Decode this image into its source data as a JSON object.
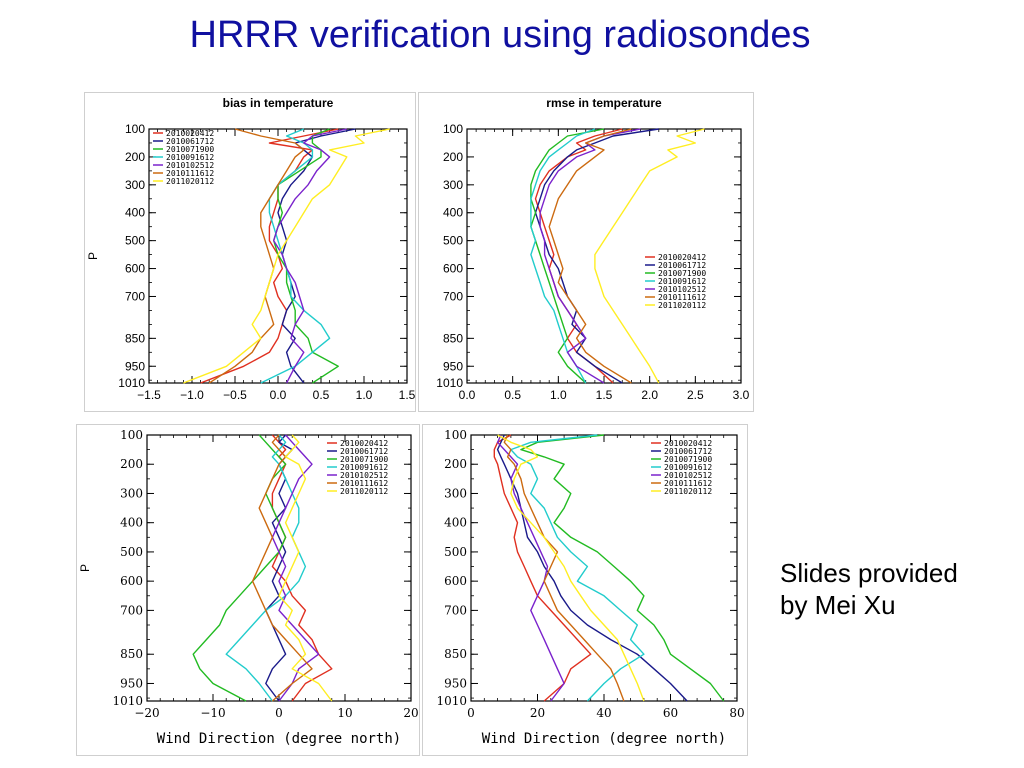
{
  "slide": {
    "title": "HRRR verification using radiosondes",
    "note_line1": "Slides provided",
    "note_line2": "by Mei Xu"
  },
  "colors": {
    "title": "#1010a0",
    "series": [
      "#e03020",
      "#1a1a8a",
      "#22bb22",
      "#22cccc",
      "#7a22cc",
      "#cc6a10",
      "#ffee22"
    ]
  },
  "chart_data": [
    {
      "type": "line",
      "title": "bias in temperature",
      "ylabel": "P",
      "xlabel": "",
      "xlim": [
        -1.5,
        1.5
      ],
      "xticks": [
        -1.5,
        -1.0,
        -0.5,
        0.0,
        0.5,
        1.0,
        1.5
      ],
      "xtick_labels": [
        "−1.5",
        "−1.0",
        "−0.5",
        "0.0",
        "0.5",
        "1.0",
        "1.5"
      ],
      "yticks": [
        100,
        200,
        300,
        400,
        500,
        600,
        700,
        850,
        950,
        1010
      ],
      "y_inverted": true,
      "grid": false,
      "legend_position": "top-left",
      "pressure": [
        100,
        125,
        150,
        175,
        200,
        250,
        300,
        350,
        400,
        450,
        500,
        550,
        600,
        650,
        700,
        750,
        800,
        850,
        900,
        950,
        1010
      ],
      "series": [
        {
          "name": "2010020412",
          "values": [
            0.7,
            0.3,
            -0.1,
            0.4,
            0.3,
            0.2,
            0.0,
            0.0,
            -0.05,
            -0.1,
            -0.1,
            0.0,
            0.05,
            -0.05,
            0.0,
            0.1,
            0.05,
            0.0,
            -0.1,
            -0.4,
            -0.9
          ]
        },
        {
          "name": "2010061712",
          "values": [
            0.9,
            0.5,
            0.2,
            0.3,
            0.4,
            0.3,
            0.15,
            0.05,
            0.0,
            0.05,
            0.1,
            0.05,
            0.1,
            0.15,
            0.2,
            0.1,
            0.05,
            0.2,
            0.1,
            0.15,
            0.3
          ]
        },
        {
          "name": "2010071900",
          "values": [
            0.6,
            0.4,
            0.4,
            0.5,
            0.5,
            0.25,
            0.0,
            0.0,
            0.05,
            0.0,
            -0.05,
            0.0,
            0.1,
            0.1,
            0.15,
            0.2,
            0.2,
            0.35,
            0.4,
            0.7,
            0.4
          ]
        },
        {
          "name": "2010091612",
          "values": [
            0.3,
            0.1,
            0.3,
            0.4,
            0.4,
            0.2,
            0.0,
            -0.1,
            -0.1,
            -0.05,
            0.0,
            0.05,
            0.1,
            0.15,
            0.15,
            0.3,
            0.5,
            0.6,
            0.4,
            0.2,
            -0.2
          ]
        },
        {
          "name": "2010102512",
          "values": [
            0.8,
            0.4,
            0.3,
            0.5,
            0.6,
            0.45,
            0.35,
            0.2,
            0.1,
            0.0,
            -0.05,
            0.05,
            0.1,
            0.2,
            0.25,
            0.3,
            0.2,
            0.15,
            0.3,
            0.2,
            0.1
          ]
        },
        {
          "name": "2010111612",
          "values": [
            -0.5,
            -0.2,
            0.2,
            0.3,
            0.2,
            0.1,
            0.0,
            -0.1,
            -0.2,
            -0.2,
            -0.15,
            -0.1,
            -0.05,
            -0.1,
            -0.15,
            -0.1,
            -0.05,
            -0.2,
            -0.3,
            -0.5,
            -0.8
          ]
        },
        {
          "name": "2011020112",
          "values": [
            1.3,
            0.9,
            1.0,
            0.6,
            0.8,
            0.7,
            0.6,
            0.4,
            0.3,
            0.2,
            0.1,
            0.0,
            -0.05,
            -0.1,
            -0.15,
            -0.2,
            -0.3,
            -0.2,
            -0.4,
            -0.6,
            -1.1
          ]
        }
      ]
    },
    {
      "type": "line",
      "title": "rmse in temperature",
      "ylabel": "",
      "xlabel": "",
      "xlim": [
        0.0,
        3.0
      ],
      "xticks": [
        0.0,
        0.5,
        1.0,
        1.5,
        2.0,
        2.5,
        3.0
      ],
      "xtick_labels": [
        "0.0",
        "0.5",
        "1.0",
        "1.5",
        "2.0",
        "2.5",
        "3.0"
      ],
      "yticks": [
        100,
        200,
        300,
        400,
        500,
        600,
        700,
        850,
        950,
        1010
      ],
      "y_inverted": true,
      "grid": false,
      "legend_position": "middle-right",
      "pressure": [
        100,
        125,
        150,
        175,
        200,
        250,
        300,
        350,
        400,
        450,
        500,
        550,
        600,
        650,
        700,
        750,
        800,
        850,
        900,
        950,
        1010
      ],
      "series": [
        {
          "name": "2010020412",
          "values": [
            1.7,
            1.4,
            1.2,
            1.3,
            1.1,
            0.9,
            0.8,
            0.75,
            0.8,
            0.85,
            0.9,
            0.95,
            0.9,
            0.95,
            1.0,
            1.1,
            1.2,
            1.1,
            1.2,
            1.4,
            1.6
          ]
        },
        {
          "name": "2010061712",
          "values": [
            2.1,
            1.6,
            1.4,
            1.2,
            1.1,
            0.95,
            0.85,
            0.8,
            0.75,
            0.8,
            0.85,
            0.9,
            1.0,
            1.05,
            1.1,
            1.2,
            1.15,
            1.3,
            1.2,
            1.4,
            1.7
          ]
        },
        {
          "name": "2010071900",
          "values": [
            1.5,
            1.1,
            1.0,
            0.9,
            0.85,
            0.75,
            0.7,
            0.7,
            0.75,
            0.7,
            0.75,
            0.8,
            0.85,
            0.9,
            0.95,
            1.0,
            1.05,
            1.1,
            1.0,
            1.1,
            1.3
          ]
        },
        {
          "name": "2010091612",
          "values": [
            1.4,
            1.2,
            1.1,
            1.0,
            0.9,
            0.8,
            0.75,
            0.7,
            0.7,
            0.7,
            0.75,
            0.7,
            0.75,
            0.8,
            0.85,
            0.95,
            1.0,
            1.05,
            1.1,
            1.2,
            1.3
          ]
        },
        {
          "name": "2010102512",
          "values": [
            1.9,
            1.5,
            1.3,
            1.4,
            1.2,
            1.0,
            0.9,
            0.85,
            0.8,
            0.8,
            0.85,
            0.85,
            0.9,
            0.95,
            1.0,
            1.1,
            1.2,
            1.3,
            1.1,
            1.2,
            1.5
          ]
        },
        {
          "name": "2010111612",
          "values": [
            1.8,
            1.5,
            1.3,
            1.5,
            1.4,
            1.2,
            1.1,
            1.0,
            0.95,
            0.9,
            0.95,
            1.0,
            1.05,
            1.0,
            1.1,
            1.2,
            1.3,
            1.2,
            1.3,
            1.5,
            1.8
          ]
        },
        {
          "name": "2011020112",
          "values": [
            2.6,
            2.3,
            2.5,
            2.2,
            2.3,
            2.0,
            1.9,
            1.8,
            1.7,
            1.6,
            1.5,
            1.4,
            1.4,
            1.45,
            1.5,
            1.6,
            1.7,
            1.8,
            1.9,
            2.0,
            2.1
          ]
        }
      ]
    },
    {
      "type": "line",
      "title": "",
      "ylabel": "P",
      "xlabel": "Wind Direction (degree north)",
      "xlim": [
        -20,
        20
      ],
      "xticks": [
        -20,
        -10,
        0,
        10,
        20
      ],
      "xtick_labels": [
        "−20",
        "−10",
        "0",
        "10",
        "20"
      ],
      "yticks": [
        100,
        200,
        300,
        400,
        500,
        600,
        700,
        850,
        950,
        1010
      ],
      "y_inverted": true,
      "grid": false,
      "legend_position": "top-right",
      "pressure": [
        100,
        125,
        150,
        175,
        200,
        250,
        300,
        350,
        400,
        450,
        500,
        550,
        600,
        650,
        700,
        750,
        800,
        850,
        900,
        950,
        1010
      ],
      "series": [
        {
          "name": "2010020412",
          "values": [
            -1,
            0,
            1,
            0,
            1,
            0,
            -1,
            -1,
            0,
            1,
            0,
            -1,
            1,
            2,
            4,
            3,
            5,
            6,
            8,
            4,
            2
          ]
        },
        {
          "name": "2010061712",
          "values": [
            1,
            0,
            2,
            1,
            0,
            1,
            0,
            1,
            -1,
            0,
            1,
            0,
            -1,
            0,
            -2,
            -1,
            0,
            1,
            -1,
            -2,
            0
          ]
        },
        {
          "name": "2010071900",
          "values": [
            -3,
            -2,
            -1,
            0,
            1,
            -1,
            -2,
            -1,
            0,
            1,
            0,
            -2,
            -4,
            -6,
            -8,
            -9,
            -11,
            -13,
            -12,
            -10,
            -5
          ]
        },
        {
          "name": "2010091612",
          "values": [
            0,
            1,
            0,
            -1,
            0,
            1,
            2,
            3,
            3,
            2,
            3,
            4,
            3,
            1,
            -2,
            -4,
            -6,
            -8,
            -5,
            -3,
            -1
          ]
        },
        {
          "name": "2010102512",
          "values": [
            1,
            2,
            3,
            4,
            5,
            3,
            2,
            1,
            0,
            -1,
            0,
            1,
            0,
            1,
            0,
            2,
            4,
            6,
            3,
            2,
            0
          ]
        },
        {
          "name": "2010111612",
          "values": [
            0,
            -1,
            0,
            1,
            0,
            -1,
            -2,
            -3,
            -2,
            -1,
            -2,
            -3,
            -4,
            -3,
            -2,
            -1,
            1,
            3,
            5,
            2,
            -1
          ]
        },
        {
          "name": "2011020112",
          "values": [
            2,
            3,
            2,
            1,
            3,
            4,
            3,
            2,
            1,
            2,
            3,
            2,
            1,
            0,
            2,
            1,
            3,
            4,
            2,
            6,
            8
          ]
        }
      ]
    },
    {
      "type": "line",
      "title": "",
      "ylabel": "",
      "xlabel": "Wind Direction (degree north)",
      "xlim": [
        0,
        80
      ],
      "xticks": [
        0,
        20,
        40,
        60,
        80
      ],
      "xtick_labels": [
        "0",
        "20",
        "40",
        "60",
        "80"
      ],
      "yticks": [
        100,
        200,
        300,
        400,
        500,
        600,
        700,
        850,
        950,
        1010
      ],
      "y_inverted": true,
      "grid": false,
      "legend_position": "top-right",
      "pressure": [
        100,
        125,
        150,
        175,
        200,
        250,
        300,
        350,
        400,
        450,
        500,
        550,
        600,
        650,
        700,
        750,
        800,
        850,
        900,
        950,
        1010
      ],
      "series": [
        {
          "name": "2010020412",
          "values": [
            12,
            8,
            7,
            7,
            8,
            9,
            10,
            12,
            14,
            13,
            14,
            16,
            18,
            20,
            24,
            28,
            32,
            36,
            30,
            28,
            22
          ]
        },
        {
          "name": "2010061712",
          "values": [
            10,
            9,
            8,
            9,
            10,
            12,
            14,
            15,
            16,
            17,
            20,
            22,
            25,
            27,
            30,
            35,
            42,
            50,
            55,
            60,
            65
          ]
        },
        {
          "name": "2010071900",
          "values": [
            40,
            20,
            15,
            22,
            28,
            25,
            30,
            28,
            25,
            30,
            38,
            43,
            48,
            52,
            50,
            55,
            58,
            60,
            66,
            72,
            76
          ]
        },
        {
          "name": "2010091612",
          "values": [
            38,
            18,
            12,
            14,
            18,
            20,
            18,
            22,
            24,
            26,
            30,
            35,
            32,
            40,
            45,
            50,
            48,
            52,
            45,
            40,
            35
          ]
        },
        {
          "name": "2010102512",
          "values": [
            9,
            8,
            10,
            12,
            14,
            12,
            13,
            15,
            17,
            19,
            21,
            23,
            22,
            20,
            18,
            20,
            22,
            24,
            26,
            28,
            24
          ]
        },
        {
          "name": "2010111612",
          "values": [
            11,
            10,
            12,
            11,
            13,
            15,
            16,
            18,
            20,
            22,
            26,
            24,
            22,
            24,
            26,
            30,
            34,
            38,
            42,
            44,
            46
          ]
        },
        {
          "name": "2011020112",
          "values": [
            8,
            12,
            18,
            20,
            15,
            13,
            12,
            14,
            18,
            22,
            25,
            28,
            30,
            33,
            36,
            40,
            44,
            46,
            48,
            50,
            52
          ]
        }
      ]
    }
  ]
}
